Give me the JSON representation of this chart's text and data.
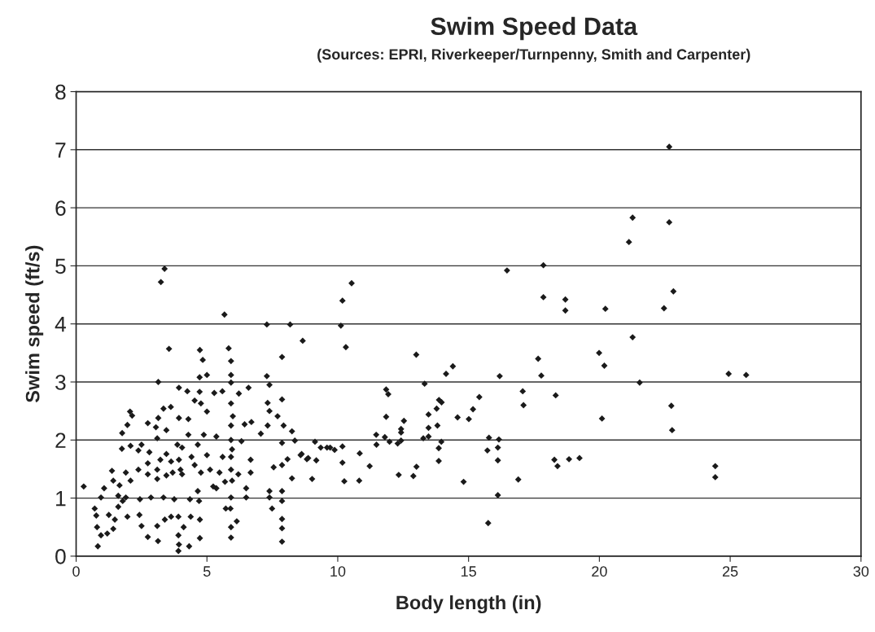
{
  "chart_data": {
    "type": "scatter",
    "title": "Swim Speed Data",
    "subtitle": "(Sources: EPRI, Riverkeeper/Turnpenny, Smith and Carpenter)",
    "xlabel": "Body length (in)",
    "ylabel": "Swim speed (ft/s)",
    "xlim": [
      0,
      30
    ],
    "xticks": [
      0,
      5,
      10,
      15,
      20,
      25,
      30
    ],
    "ylim": [
      0,
      8
    ],
    "yticks": [
      0,
      1,
      2,
      3,
      4,
      5,
      6,
      7,
      8
    ],
    "grid": "y",
    "marker": "diamond",
    "series": [
      {
        "color": "#1a1a1a",
        "x": [
          22.67,
          21.27,
          22.67,
          21.13,
          22.83,
          20.23,
          22.47,
          21.27,
          19.99,
          20.19,
          21.54,
          24.94,
          25.61,
          22.75,
          20.1,
          22.78,
          18.84,
          19.24,
          24.43,
          24.43,
          8.66,
          10.53,
          10.18,
          10.12,
          10.31,
          13.0,
          14.4,
          14.14,
          13.32,
          11.85,
          11.93,
          11.85,
          12.53,
          13.47,
          13.78,
          13.97,
          13.87,
          13.81,
          13.47,
          12.42,
          12.42,
          11.47,
          11.8,
          11.98,
          12.29,
          12.42,
          13.27,
          13.47,
          13.96,
          13.86,
          13.86,
          14.58,
          15.01,
          15.17,
          15.41,
          16.19,
          16.47,
          17.86,
          17.86,
          18.7,
          18.7,
          17.66,
          17.78,
          17.07,
          17.1,
          18.33,
          15.78,
          16.16,
          15.72,
          16.12,
          16.12,
          16.12,
          15.75,
          16.9,
          14.81,
          18.28,
          18.4,
          12.89,
          13.01,
          12.33,
          10.82,
          10.84,
          11.22,
          10.25,
          10.18,
          10.18,
          9.88,
          9.71,
          9.59,
          9.35,
          9.13,
          9.18,
          8.87,
          8.62,
          9.02,
          11.48,
          3.38,
          3.24,
          5.67,
          7.29,
          8.18,
          3.55,
          7.87,
          4.73,
          4.84,
          5.83,
          5.92,
          5.92,
          5.92,
          5.0,
          4.72,
          3.14,
          3.93,
          4.25,
          4.72,
          5.28,
          5.59,
          6.22,
          6.59,
          7.29,
          7.39,
          7.87,
          7.32,
          7.39,
          7.7,
          7.93,
          8.25,
          8.36,
          7.87,
          7.32,
          7.06,
          6.44,
          6.7,
          6.32,
          5.92,
          5.99,
          5.92,
          5.92,
          5.0,
          4.77,
          4.53,
          4.29,
          3.93,
          3.62,
          3.34,
          3.14,
          3.05,
          2.74,
          2.06,
          2.14,
          1.96,
          1.76,
          1.75,
          2.08,
          2.38,
          2.5,
          2.8,
          3.1,
          3.45,
          3.87,
          4.29,
          4.65,
          4.88,
          5.36,
          5.6,
          5.48,
          5.36,
          5.0,
          4.77,
          4.53,
          3.99,
          4.05,
          3.69,
          3.45,
          3.1,
          2.74,
          2.38,
          2.08,
          1.9,
          1.66,
          1.42,
          1.37,
          1.07,
          0.95,
          0.71,
          0.77,
          0.8,
          0.95,
          1.19,
          1.42,
          1.48,
          1.25,
          1.61,
          1.78,
          0.83,
          0.29,
          1.96,
          2.42,
          2.5,
          2.74,
          3.13,
          3.1,
          3.39,
          3.63,
          3.91,
          3.91,
          3.91,
          3.93,
          4.11,
          4.32,
          4.38,
          4.73,
          4.73,
          4.7,
          4.65,
          4.35,
          3.75,
          3.34,
          2.86,
          2.44,
          1.9,
          1.61,
          5.72,
          5.9,
          6.14,
          5.92,
          5.92,
          5.92,
          5.96,
          5.92,
          5.92,
          5.96,
          6.5,
          6.5,
          6.67,
          6.67,
          6.2,
          5.69,
          5.24,
          5.12,
          7.39,
          7.39,
          7.49,
          7.55,
          7.87,
          7.87,
          7.87,
          7.87,
          7.87,
          7.87,
          8.25,
          8.58,
          8.82,
          8.08,
          3.93,
          4.05,
          3.63,
          3.45,
          3.22,
          3.1,
          2.74,
          4.41
        ],
        "values": [
          7.05,
          5.83,
          5.75,
          5.41,
          4.56,
          4.26,
          4.27,
          3.77,
          3.5,
          3.28,
          2.99,
          3.14,
          3.12,
          2.59,
          2.37,
          2.17,
          1.67,
          1.69,
          1.55,
          1.36,
          3.71,
          4.7,
          4.4,
          3.97,
          3.6,
          3.47,
          3.27,
          3.14,
          2.97,
          2.87,
          2.79,
          2.4,
          2.33,
          2.44,
          2.54,
          2.65,
          2.69,
          2.25,
          2.21,
          2.19,
          2.13,
          2.09,
          2.05,
          1.97,
          1.94,
          1.99,
          2.03,
          2.06,
          1.97,
          1.86,
          1.64,
          2.39,
          2.36,
          2.53,
          2.74,
          3.1,
          4.92,
          5.01,
          4.46,
          4.42,
          4.23,
          3.4,
          3.11,
          2.84,
          2.6,
          2.77,
          2.04,
          2.01,
          1.82,
          1.87,
          1.65,
          1.05,
          0.57,
          1.32,
          1.28,
          1.66,
          1.55,
          1.38,
          1.54,
          1.4,
          1.3,
          1.77,
          1.55,
          1.29,
          1.61,
          1.89,
          1.83,
          1.87,
          1.87,
          1.87,
          1.97,
          1.65,
          1.69,
          1.76,
          1.33,
          1.92,
          4.95,
          4.72,
          4.16,
          3.99,
          3.99,
          3.57,
          3.43,
          3.55,
          3.38,
          3.58,
          3.36,
          3.12,
          2.99,
          3.12,
          3.08,
          3.0,
          2.9,
          2.84,
          2.83,
          2.81,
          2.84,
          2.8,
          2.9,
          3.1,
          2.95,
          2.7,
          2.64,
          2.5,
          2.41,
          2.25,
          2.15,
          1.99,
          1.95,
          2.25,
          2.11,
          2.27,
          2.31,
          1.98,
          2.63,
          2.41,
          2.25,
          2.0,
          2.49,
          2.63,
          2.68,
          2.36,
          2.38,
          2.57,
          2.54,
          2.38,
          2.22,
          2.29,
          2.49,
          2.42,
          2.26,
          2.12,
          1.85,
          1.9,
          1.82,
          1.92,
          1.79,
          2.03,
          2.17,
          1.92,
          2.09,
          1.92,
          2.09,
          2.06,
          1.71,
          1.44,
          1.17,
          1.74,
          1.44,
          1.57,
          1.49,
          1.41,
          1.44,
          1.39,
          1.33,
          1.41,
          1.49,
          1.3,
          1.44,
          1.22,
          1.3,
          1.47,
          1.17,
          1.01,
          0.82,
          0.7,
          0.5,
          0.36,
          0.39,
          0.47,
          0.63,
          0.71,
          0.85,
          0.95,
          0.17,
          1.2,
          0.68,
          0.71,
          0.52,
          0.33,
          0.26,
          0.52,
          0.63,
          0.68,
          0.68,
          0.36,
          0.09,
          0.2,
          0.5,
          0.17,
          0.68,
          0.63,
          0.31,
          0.95,
          1.12,
          0.98,
          0.98,
          1.01,
          1.01,
          0.98,
          1.01,
          1.04,
          0.82,
          0.82,
          0.6,
          0.5,
          0.32,
          1.01,
          1.3,
          1.49,
          1.71,
          1.84,
          1.01,
          1.17,
          1.44,
          1.66,
          1.41,
          1.28,
          1.2,
          1.49,
          1.12,
          1.01,
          0.82,
          1.53,
          1.57,
          1.12,
          0.95,
          0.64,
          0.48,
          0.25,
          1.34,
          1.74,
          1.67,
          1.67,
          1.66,
          1.87,
          1.63,
          1.76,
          1.66,
          1.49,
          1.6,
          1.71
        ]
      }
    ]
  }
}
